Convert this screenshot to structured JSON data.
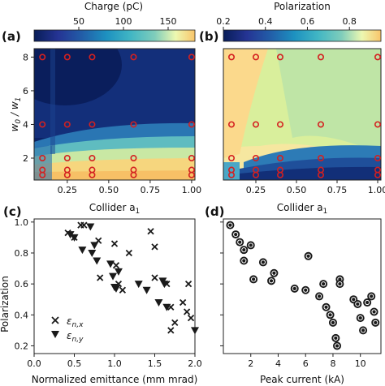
{
  "chart_data": [
    {
      "panel": "a",
      "type": "heatmap",
      "panel_label": "(a)",
      "colorbar": {
        "label": "Charge (pC)",
        "ticks": [
          "50",
          "100",
          "150"
        ],
        "range": [
          0,
          180
        ],
        "colormap": "YlGnBu_r-like (dark blue to yellow)"
      },
      "xlabel": "Collider a",
      "xlabel_sub": "1",
      "ylabel": "w",
      "ylabel_sub": "0",
      "ylabel_mid": " / w",
      "ylabel_sub2": "1",
      "xticks": [
        "0.25",
        "0.50",
        "0.75",
        "1.00"
      ],
      "yticks": [
        "2",
        "4",
        "6",
        "8"
      ],
      "xlim": [
        0.05,
        1.02
      ],
      "ylim": [
        0.7,
        8.5
      ],
      "markers": {
        "style": "open red circles",
        "x": [
          0.1,
          0.25,
          0.4,
          0.65,
          1.0
        ],
        "y": [
          1.0,
          1.3,
          2.0,
          4.0,
          8.0
        ]
      },
      "description_values": {
        "low_w_high_charge": 170,
        "high_w_low_charge": 10
      }
    },
    {
      "panel": "b",
      "type": "heatmap",
      "panel_label": "(b)",
      "colorbar": {
        "label": "Polarization",
        "ticks": [
          "0.2",
          "0.4",
          "0.6",
          "0.8"
        ],
        "range": [
          0.2,
          0.95
        ],
        "colormap": "YlGnBu_r-like"
      },
      "xlabel": "Collider a",
      "xlabel_sub": "1",
      "xticks": [
        "0.25",
        "0.50",
        "0.75",
        "1.00"
      ],
      "xlim": [
        0.05,
        1.02
      ],
      "ylim": [
        0.7,
        8.5
      ],
      "markers": {
        "style": "open red circles",
        "x": [
          0.1,
          0.25,
          0.4,
          0.65,
          1.0
        ],
        "y": [
          1.0,
          1.3,
          2.0,
          4.0,
          8.0
        ]
      }
    },
    {
      "panel": "c",
      "type": "scatter",
      "panel_label": "(c)",
      "xlabel": "Normalized emittance (mm mrad)",
      "ylabel": "Polarization",
      "xticks": [
        "0.0",
        "0.5",
        "1.0",
        "1.5",
        "2.0"
      ],
      "yticks": [
        "0.2",
        "0.4",
        "0.6",
        "0.8",
        "1.0"
      ],
      "xlim": [
        0.0,
        2.0
      ],
      "ylim": [
        0.15,
        1.02
      ],
      "legend_position": "lower-left",
      "series": [
        {
          "name": "ε",
          "name_sub": "n,x",
          "marker": "x",
          "x": [
            0.42,
            0.5,
            0.62,
            0.8,
            0.82,
            1.0,
            1.02,
            1.05,
            1.18,
            1.45,
            1.5,
            1.1,
            1.5,
            1.65,
            1.7,
            1.75,
            1.85,
            1.9,
            1.7,
            1.92,
            1.95,
            0.58
          ],
          "y": [
            0.93,
            0.9,
            0.98,
            0.88,
            0.64,
            0.86,
            0.72,
            0.6,
            0.8,
            0.94,
            0.84,
            0.56,
            0.64,
            0.6,
            0.45,
            0.35,
            0.48,
            0.42,
            0.3,
            0.6,
            0.38,
            0.98
          ]
        },
        {
          "name": "ε",
          "name_sub": "n,y",
          "marker": "triangle-down",
          "x": [
            0.45,
            0.5,
            0.6,
            0.7,
            0.75,
            0.78,
            0.72,
            0.95,
            0.98,
            1.0,
            1.02,
            1.05,
            1.3,
            1.4,
            1.55,
            1.6,
            1.62,
            1.65,
            2.0
          ],
          "y": [
            0.92,
            0.9,
            0.82,
            0.97,
            0.85,
            0.75,
            0.8,
            0.73,
            0.65,
            0.58,
            0.57,
            0.68,
            0.6,
            0.56,
            0.48,
            0.62,
            0.6,
            0.45,
            0.3
          ]
        }
      ]
    },
    {
      "panel": "d",
      "type": "scatter",
      "panel_label": "(d)",
      "xlabel": "Peak current (kA)",
      "xticks": [
        "2",
        "4",
        "6",
        "8",
        "10"
      ],
      "yticks": [
        "0.2",
        "0.4",
        "0.6",
        "0.8",
        "1.0"
      ],
      "xlim": [
        0,
        11.5
      ],
      "ylim": [
        0.15,
        1.02
      ],
      "series": [
        {
          "marker": "circled-dot",
          "x": [
            0.5,
            0.9,
            1.2,
            1.5,
            2.0,
            1.5,
            2.9,
            2.2,
            3.5,
            3.7,
            5.2,
            6.0,
            6.2,
            7.3,
            7.0,
            7.5,
            7.8,
            8.0,
            8.2,
            8.3,
            8.5,
            8.5,
            9.5,
            9.8,
            10.0,
            10.2,
            10.5,
            10.8,
            11.0,
            11.1
          ],
          "y": [
            0.98,
            0.92,
            0.87,
            0.82,
            0.85,
            0.75,
            0.74,
            0.63,
            0.62,
            0.67,
            0.57,
            0.56,
            0.78,
            0.6,
            0.52,
            0.45,
            0.4,
            0.35,
            0.25,
            0.2,
            0.63,
            0.6,
            0.5,
            0.47,
            0.38,
            0.3,
            0.48,
            0.52,
            0.42,
            0.35
          ]
        }
      ]
    }
  ],
  "colors": {
    "marker_red": "#d42020",
    "dark": "#1a1a1a"
  }
}
